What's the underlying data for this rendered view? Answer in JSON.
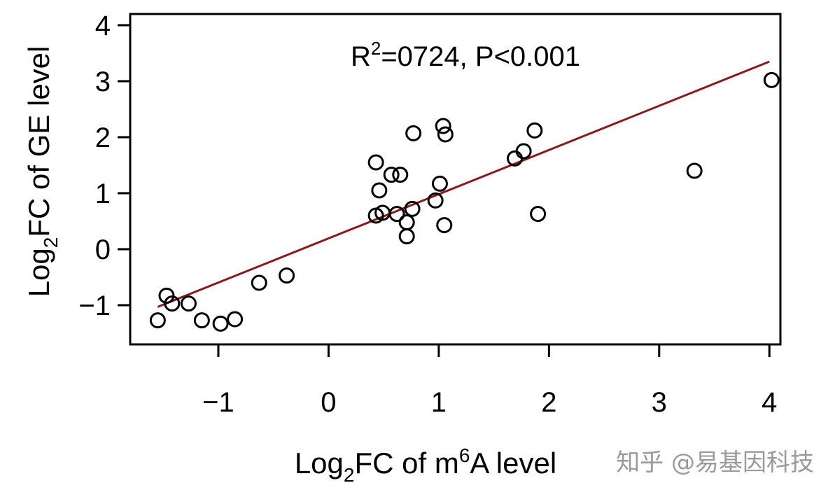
{
  "chart_data": {
    "type": "scatter",
    "xlabel": {
      "prefix": "Log",
      "sub": "2",
      "middle": "FC of m",
      "sup": "6",
      "suffix": "A level"
    },
    "ylabel": {
      "prefix": "Log",
      "sub": "2",
      "suffix": "FC of GE level"
    },
    "annotation": {
      "prefix": "R",
      "sup": "2",
      "suffix": "=0724, P<0.001"
    },
    "xlim": [
      -1.8,
      4.1
    ],
    "ylim": [
      -1.7,
      4.2
    ],
    "xticks": [
      {
        "value": -1,
        "label": "−1"
      },
      {
        "value": 0,
        "label": "0"
      },
      {
        "value": 1,
        "label": "1"
      },
      {
        "value": 2,
        "label": "2"
      },
      {
        "value": 3,
        "label": "3"
      },
      {
        "value": 4,
        "label": "4"
      }
    ],
    "yticks": [
      {
        "value": -1,
        "label": "−1"
      },
      {
        "value": 0,
        "label": "0"
      },
      {
        "value": 1,
        "label": "1"
      },
      {
        "value": 2,
        "label": "2"
      },
      {
        "value": 3,
        "label": "3"
      },
      {
        "value": 4,
        "label": "4"
      }
    ],
    "points": [
      {
        "x": -1.55,
        "y": -1.27
      },
      {
        "x": -1.47,
        "y": -0.83
      },
      {
        "x": -1.42,
        "y": -0.97
      },
      {
        "x": -1.27,
        "y": -0.97
      },
      {
        "x": -1.15,
        "y": -1.27
      },
      {
        "x": -0.98,
        "y": -1.33
      },
      {
        "x": -0.85,
        "y": -1.25
      },
      {
        "x": -0.63,
        "y": -0.6
      },
      {
        "x": -0.38,
        "y": -0.47
      },
      {
        "x": 0.43,
        "y": 1.55
      },
      {
        "x": 0.46,
        "y": 1.05
      },
      {
        "x": 0.43,
        "y": 0.6
      },
      {
        "x": 0.49,
        "y": 0.65
      },
      {
        "x": 0.57,
        "y": 1.33
      },
      {
        "x": 0.65,
        "y": 1.33
      },
      {
        "x": 0.62,
        "y": 0.63
      },
      {
        "x": 0.71,
        "y": 0.48
      },
      {
        "x": 0.71,
        "y": 0.23
      },
      {
        "x": 0.76,
        "y": 0.72
      },
      {
        "x": 0.77,
        "y": 2.07
      },
      {
        "x": 0.97,
        "y": 0.87
      },
      {
        "x": 1.01,
        "y": 1.17
      },
      {
        "x": 1.04,
        "y": 2.2
      },
      {
        "x": 1.06,
        "y": 2.05
      },
      {
        "x": 1.05,
        "y": 0.43
      },
      {
        "x": 1.69,
        "y": 1.62
      },
      {
        "x": 1.77,
        "y": 1.75
      },
      {
        "x": 1.87,
        "y": 2.12
      },
      {
        "x": 1.9,
        "y": 0.63
      },
      {
        "x": 3.32,
        "y": 1.4
      },
      {
        "x": 4.02,
        "y": 3.02
      }
    ],
    "fit_line": {
      "x": [
        -1.55,
        4.0
      ],
      "y": [
        -1.03,
        3.35
      ],
      "color": "#8b1a1a"
    },
    "grid": false,
    "point_style": {
      "shape": "open-circle",
      "color": "#000000"
    }
  },
  "watermark": "知乎 @易基因科技"
}
